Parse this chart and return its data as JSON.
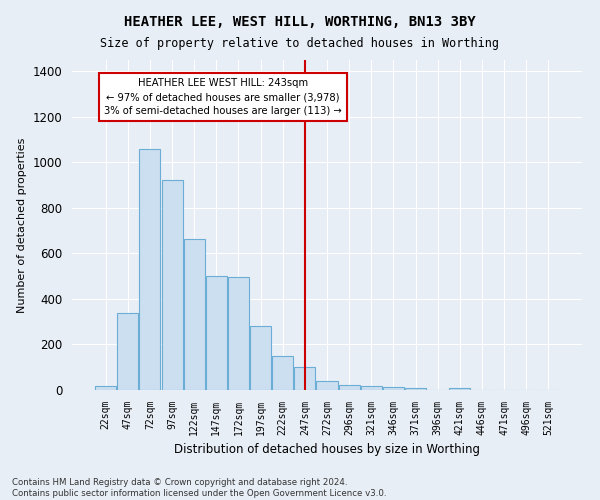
{
  "title": "HEATHER LEE, WEST HILL, WORTHING, BN13 3BY",
  "subtitle": "Size of property relative to detached houses in Worthing",
  "xlabel": "Distribution of detached houses by size in Worthing",
  "ylabel": "Number of detached properties",
  "categories": [
    "22sqm",
    "47sqm",
    "72sqm",
    "97sqm",
    "122sqm",
    "147sqm",
    "172sqm",
    "197sqm",
    "222sqm",
    "247sqm",
    "272sqm",
    "296sqm",
    "321sqm",
    "346sqm",
    "371sqm",
    "396sqm",
    "421sqm",
    "446sqm",
    "471sqm",
    "496sqm",
    "521sqm"
  ],
  "bar_values": [
    18,
    337,
    1058,
    921,
    665,
    500,
    498,
    280,
    150,
    100,
    40,
    22,
    18,
    15,
    10,
    0,
    10,
    0,
    0,
    0,
    0
  ],
  "bar_color": "#ccdff0",
  "bar_edge_color": "#6aaed6",
  "vline_color": "#cc0000",
  "annotation_title": "HEATHER LEE WEST HILL: 243sqm",
  "annotation_line1": "← 97% of detached houses are smaller (3,978)",
  "annotation_line2": "3% of semi-detached houses are larger (113) →",
  "annotation_box_facecolor": "#ffffff",
  "annotation_box_edgecolor": "#cc0000",
  "ylim": [
    0,
    1450
  ],
  "yticks": [
    0,
    200,
    400,
    600,
    800,
    1000,
    1200,
    1400
  ],
  "background_color": "#e8eef6",
  "grid_color": "#ffffff",
  "footer_line1": "Contains HM Land Registry data © Crown copyright and database right 2024.",
  "footer_line2": "Contains public sector information licensed under the Open Government Licence v3.0."
}
